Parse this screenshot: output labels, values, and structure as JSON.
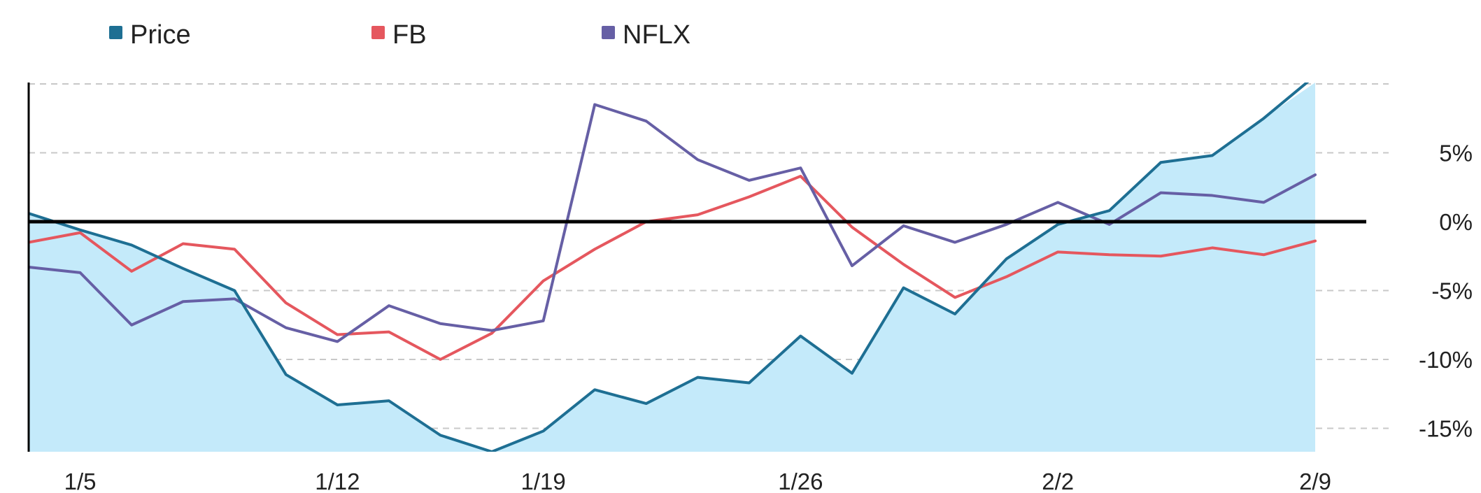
{
  "chart_data": {
    "type": "line",
    "x_ticks": [
      "1/5",
      "1/12",
      "1/19",
      "1/26",
      "2/2",
      "2/9"
    ],
    "y_ticks": [
      "5%",
      "0%",
      "-5%",
      "-10%",
      "-15%"
    ],
    "y_tick_values": [
      5,
      0,
      -5,
      -10,
      -15
    ],
    "ylim": [
      -16.7,
      10.1
    ],
    "x_range": [
      0,
      25
    ],
    "x_tick_positions": [
      1,
      6,
      10,
      15,
      20,
      25
    ],
    "grid": true,
    "legend": "top-left",
    "series": [
      {
        "name": "Price",
        "color": "#1e6f93",
        "fill": "#c4eafa",
        "values": [
          0.6,
          -0.6,
          -1.7,
          -3.4,
          -5.0,
          -11.1,
          -13.3,
          -13.0,
          -15.5,
          -16.7,
          -15.2,
          -12.2,
          -13.2,
          -11.3,
          -11.7,
          -8.3,
          -11.0,
          -4.8,
          -6.7,
          -2.7,
          -0.2,
          0.8,
          4.3,
          4.8,
          7.5,
          10.6
        ]
      },
      {
        "name": "FB",
        "color": "#e5575e",
        "values": [
          -1.5,
          -0.8,
          -3.6,
          -1.6,
          -2.0,
          -5.9,
          -8.2,
          -8.0,
          -10.0,
          -8.1,
          -4.3,
          -2.0,
          0.0,
          0.5,
          1.8,
          3.3,
          -0.4,
          -3.1,
          -5.5,
          -4.0,
          -2.2,
          -2.4,
          -2.5,
          -1.9,
          -2.4,
          -1.4
        ]
      },
      {
        "name": "NFLX",
        "color": "#665fa5",
        "values": [
          -3.3,
          -3.7,
          -7.5,
          -5.8,
          -5.6,
          -7.7,
          -8.7,
          -6.1,
          -7.4,
          -7.9,
          -7.2,
          8.5,
          7.3,
          4.5,
          3.0,
          3.9,
          -3.2,
          -0.3,
          -1.5,
          -0.2,
          1.4,
          -0.2,
          2.1,
          1.9,
          1.4,
          3.4
        ]
      }
    ]
  }
}
